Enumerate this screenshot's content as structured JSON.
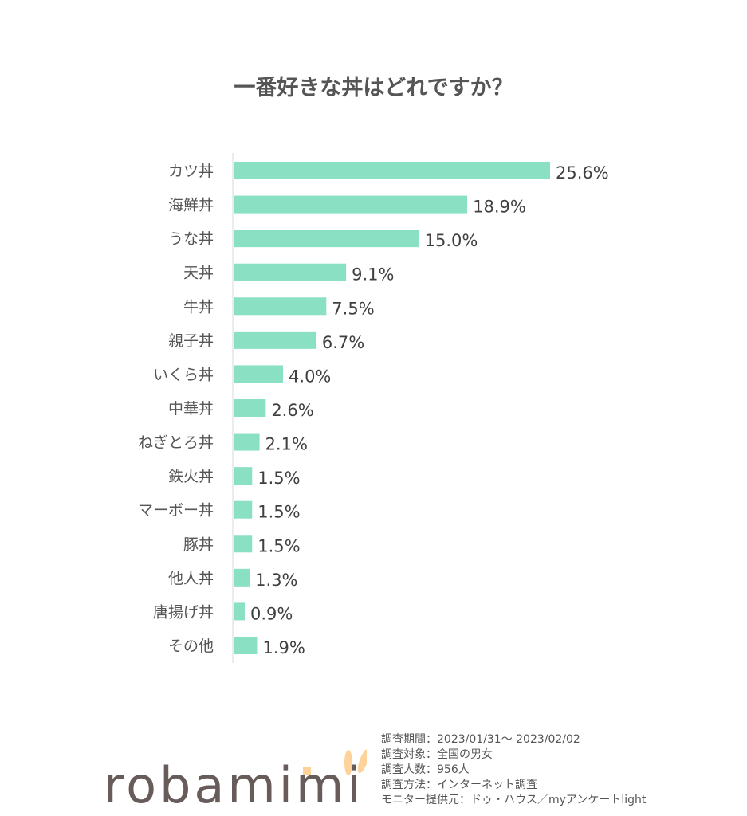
{
  "chart_data": {
    "type": "bar",
    "orientation": "horizontal",
    "title": "一番好きな丼はどれですか？",
    "categories": [
      "カツ丼",
      "海鮮丼",
      "うな丼",
      "天丼",
      "牛丼",
      "親子丼",
      "いくら丼",
      "中華丼",
      "ねぎとろ丼",
      "鉄火丼",
      "マーボー丼",
      "豚丼",
      "他人丼",
      "唐揚げ丼",
      "その他"
    ],
    "values": [
      25.6,
      18.9,
      15.0,
      9.1,
      7.5,
      6.7,
      4.0,
      2.6,
      2.1,
      1.5,
      1.5,
      1.5,
      1.3,
      0.9,
      1.9
    ],
    "data_labels": [
      "25.6%",
      "18.9%",
      "15.0%",
      "9.1%",
      "7.5%",
      "6.7%",
      "4.0%",
      "2.6%",
      "2.1%",
      "1.5%",
      "1.5%",
      "1.5%",
      "1.3%",
      "0.9%",
      "1.9%"
    ],
    "bar_color": "#8ae0c3",
    "grid": false
  },
  "notes": [
    "調査期間：2023/01/31～ 2023/02/02",
    "調査対象：全国の男女",
    "調査人数：956人",
    "調査方法：インターネット調査",
    "モニター提供元：ドゥ・ハウス／myアンケートlight"
  ],
  "logo": {
    "text": "robamimi",
    "color": "#675c5a",
    "accent": "#fdd39b"
  }
}
